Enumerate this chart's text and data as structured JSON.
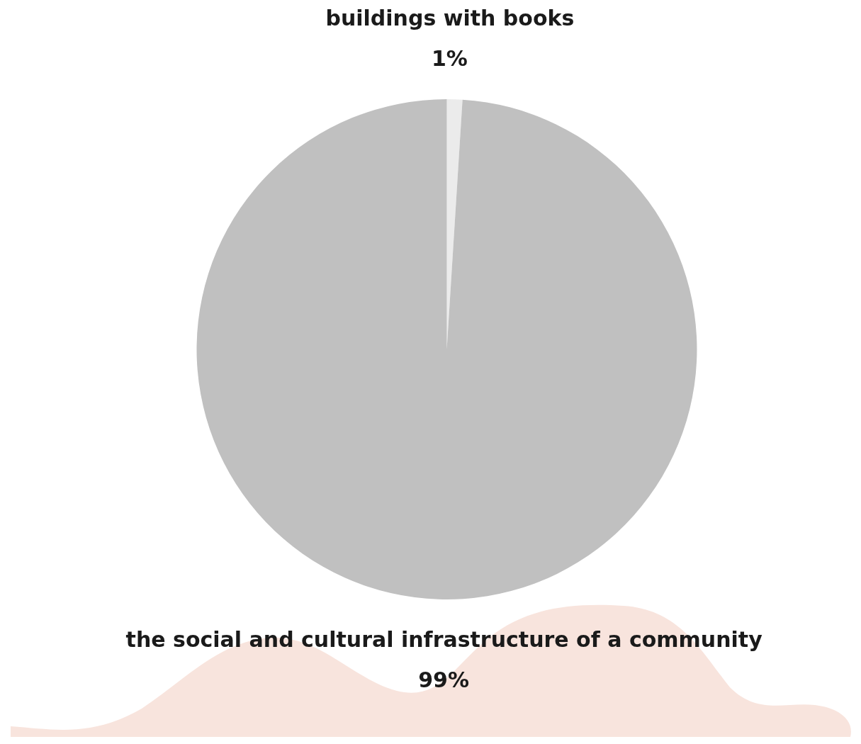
{
  "chart_data": {
    "type": "pie",
    "categories": [
      "buildings with books",
      "the social and cultural infrastructure of a community"
    ],
    "values": [
      1,
      99
    ],
    "colors": [
      "#ebebeb",
      "#c0c0c0"
    ],
    "value_labels": [
      "1%",
      "99%"
    ],
    "legend": false
  }
}
